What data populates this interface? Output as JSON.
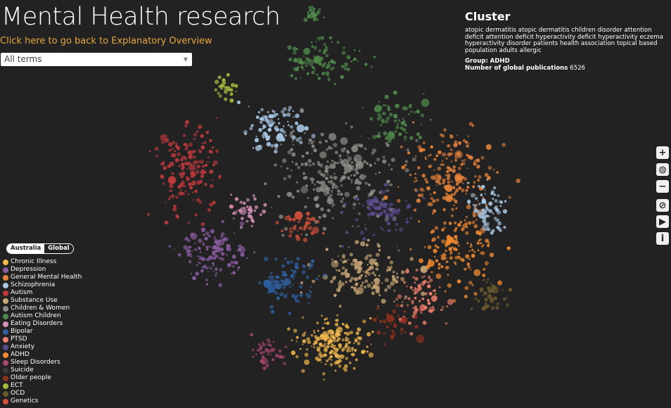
{
  "header": {
    "title": "Mental Health research",
    "back_link": "Click here to go back to Explanatory Overview"
  },
  "filter": {
    "selected": "All terms"
  },
  "cluster": {
    "heading": "Cluster",
    "terms": "atopic dermatitis atopic dermatitis children disorder attention deficit attention deficit hyperactivity deficit hyperactivity eczema hyperactivity disorder patients health association topical based population adults allergic",
    "group_label": "Group:",
    "group_value": "ADHD",
    "publications_label": "Number of global publications",
    "publications_value": "6526"
  },
  "controls": [
    {
      "name": "zoom-in-button",
      "icon": "plus-icon",
      "glyph": "+"
    },
    {
      "name": "reset-view-button",
      "icon": "globe-icon",
      "glyph": "◍"
    },
    {
      "name": "zoom-out-button",
      "icon": "minus-icon",
      "glyph": "−"
    },
    {
      "name": "clear-selection-button",
      "icon": "ban-icon",
      "glyph": "⊘"
    },
    {
      "name": "video-button",
      "icon": "youtube-icon",
      "glyph": "▶"
    },
    {
      "name": "info-button",
      "icon": "info-icon",
      "glyph": "i"
    }
  ],
  "scope_toggle": {
    "options": [
      "Australia",
      "Global"
    ],
    "active": "Australia"
  },
  "legend": [
    {
      "label": "Chronic Illness",
      "color": "#f2b84b"
    },
    {
      "label": "Depression",
      "color": "#8a5ca0"
    },
    {
      "label": "General Mental Health",
      "color": "#e8833a"
    },
    {
      "label": "Schizophrenia",
      "color": "#a9c8e4"
    },
    {
      "label": "Autism",
      "color": "#c0393d"
    },
    {
      "label": "Substance Use",
      "color": "#c9a777"
    },
    {
      "label": "Children & Women",
      "color": "#8c8a86"
    },
    {
      "label": "Autism Children",
      "color": "#4f8a4b"
    },
    {
      "label": "Eating Disorders",
      "color": "#d592b8"
    },
    {
      "label": "Bipolar",
      "color": "#2f5fa0"
    },
    {
      "label": "PTSD",
      "color": "#f0806b"
    },
    {
      "label": "Anxiety",
      "color": "#5a4a8c"
    },
    {
      "label": "ADHD",
      "color": "#f08a30"
    },
    {
      "label": "Sleep Disorders",
      "color": "#a8446e"
    },
    {
      "label": "Suicide",
      "color": "#3a3a3a"
    },
    {
      "label": "Older people",
      "color": "#8b2f1e"
    },
    {
      "label": "ECT",
      "color": "#a7b83d"
    },
    {
      "label": "OCD",
      "color": "#6a5a2c"
    },
    {
      "label": "Genetics",
      "color": "#d4503a"
    }
  ]
}
